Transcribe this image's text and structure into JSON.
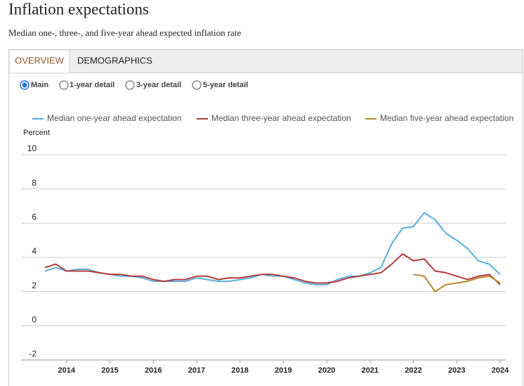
{
  "header": {
    "title": "Inflation expectations",
    "subtitle": "Median one-, three-, and five-year ahead expected inflation rate"
  },
  "tabs": [
    "OVERVIEW",
    "DEMOGRAPHICS"
  ],
  "options": [
    "Main",
    "1-year detail",
    "3-year detail",
    "5-year detail"
  ],
  "chart_data": {
    "type": "line",
    "y_label": "Percent",
    "x": [
      2013.5,
      2013.75,
      2014.0,
      2014.25,
      2014.5,
      2014.75,
      2015.0,
      2015.25,
      2015.5,
      2015.75,
      2016.0,
      2016.25,
      2016.5,
      2016.75,
      2017.0,
      2017.25,
      2017.5,
      2017.75,
      2018.0,
      2018.25,
      2018.5,
      2018.75,
      2019.0,
      2019.25,
      2019.5,
      2019.75,
      2020.0,
      2020.25,
      2020.5,
      2020.75,
      2021.0,
      2021.25,
      2021.5,
      2021.75,
      2022.0,
      2022.25,
      2022.5,
      2022.75,
      2023.0,
      2023.25,
      2023.5,
      2023.75,
      2024.0
    ],
    "series": [
      {
        "name": "Median one-year ahead expectation",
        "color": "#5aaee0",
        "values": [
          3.2,
          3.4,
          3.2,
          3.3,
          3.3,
          3.1,
          3.0,
          2.9,
          2.9,
          2.8,
          2.6,
          2.6,
          2.6,
          2.6,
          2.8,
          2.7,
          2.6,
          2.6,
          2.7,
          2.8,
          3.0,
          2.9,
          2.9,
          2.7,
          2.5,
          2.4,
          2.4,
          2.7,
          2.9,
          2.9,
          3.1,
          3.4,
          4.8,
          5.7,
          5.8,
          6.6,
          6.2,
          5.4,
          5.0,
          4.5,
          3.8,
          3.6,
          3.0
        ]
      },
      {
        "name": "Median three-year ahead expectation",
        "color": "#b53a3a",
        "values": [
          3.4,
          3.6,
          3.2,
          3.2,
          3.2,
          3.1,
          3.0,
          3.0,
          2.9,
          2.9,
          2.7,
          2.6,
          2.7,
          2.7,
          2.9,
          2.9,
          2.7,
          2.8,
          2.8,
          2.9,
          3.0,
          3.0,
          2.9,
          2.8,
          2.6,
          2.5,
          2.5,
          2.6,
          2.8,
          2.9,
          3.0,
          3.1,
          3.6,
          4.2,
          3.8,
          3.9,
          3.2,
          3.1,
          2.9,
          2.7,
          2.9,
          3.0,
          2.4
        ]
      },
      {
        "name": "Median five-year ahead expectation",
        "color": "#b8862e",
        "values": [
          null,
          null,
          null,
          null,
          null,
          null,
          null,
          null,
          null,
          null,
          null,
          null,
          null,
          null,
          null,
          null,
          null,
          null,
          null,
          null,
          null,
          null,
          null,
          null,
          null,
          null,
          null,
          null,
          null,
          null,
          null,
          null,
          null,
          null,
          3.0,
          2.9,
          2.0,
          2.4,
          2.5,
          2.6,
          2.8,
          2.9,
          2.5
        ]
      }
    ],
    "xlim": [
      2012.95,
      2024.13
    ],
    "xticks": [
      2014,
      2015,
      2016,
      2017,
      2018,
      2019,
      2020,
      2021,
      2022,
      2023,
      2024
    ],
    "ylim": [
      -2,
      10
    ],
    "yticks": [
      -2,
      0,
      2,
      4,
      6,
      8,
      10
    ],
    "grid": true
  }
}
